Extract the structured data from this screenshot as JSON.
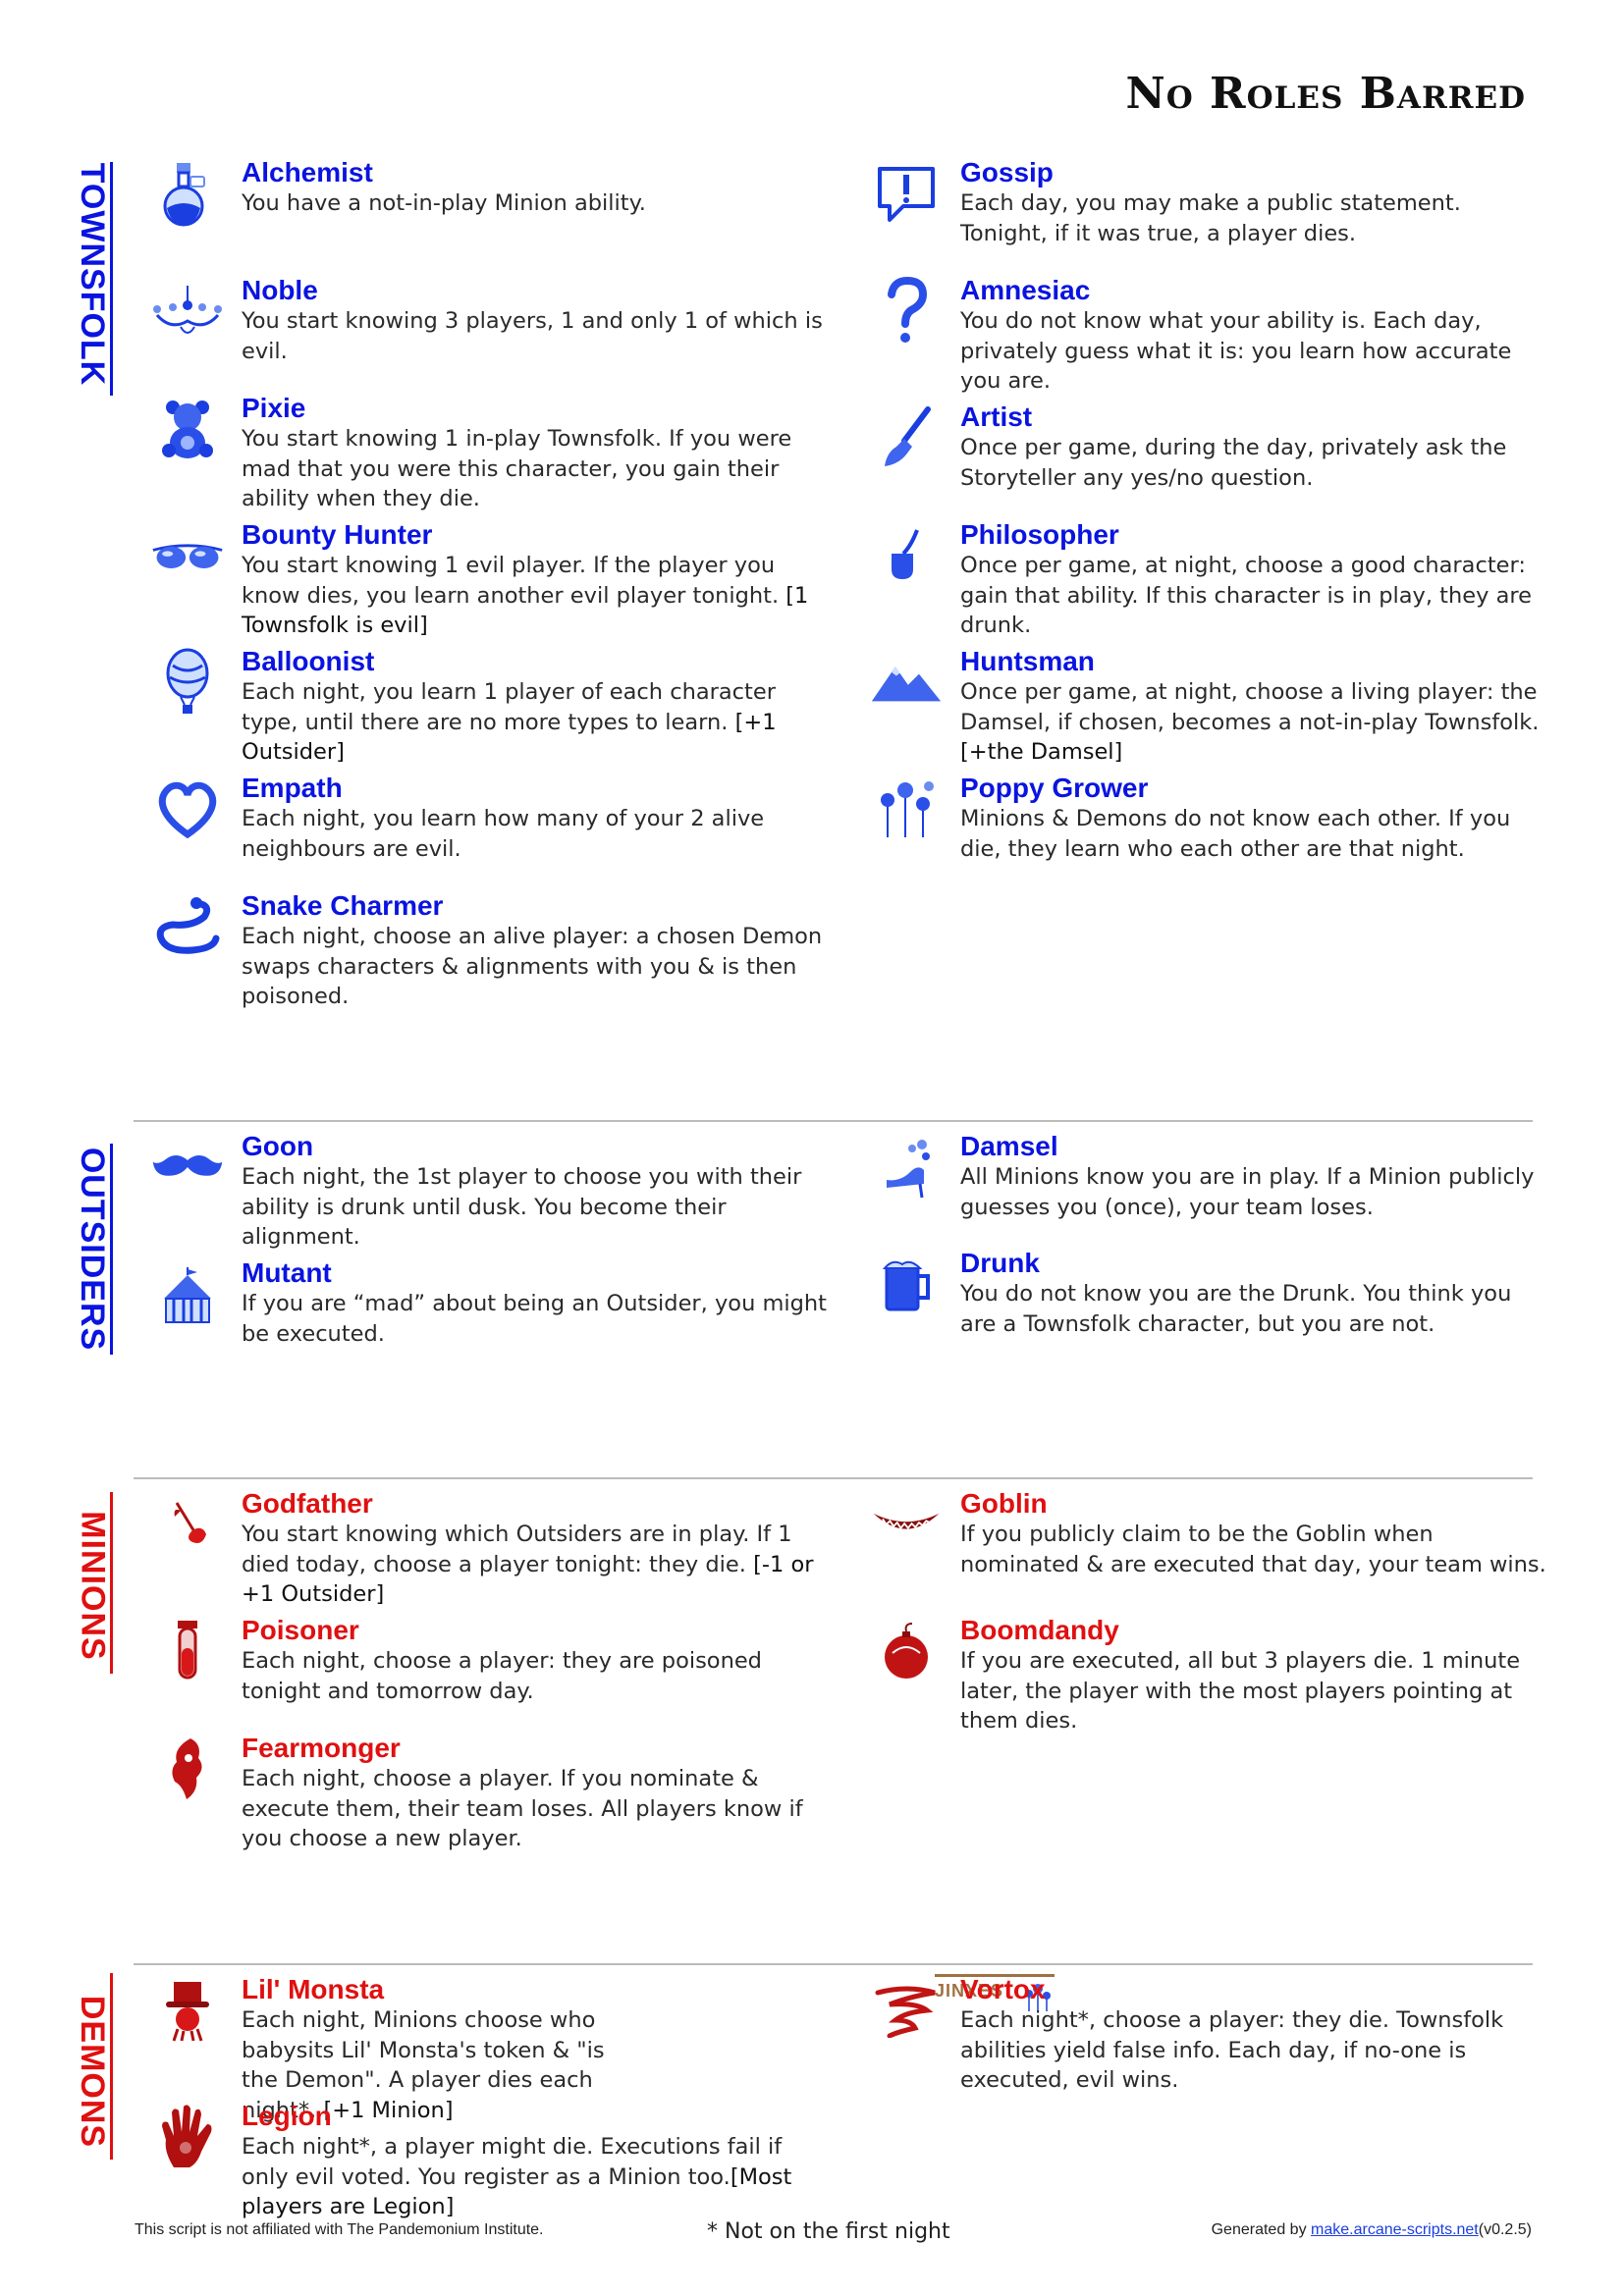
{
  "title": "No Roles Barred",
  "sections": {
    "townsfolk": {
      "label": "TOWNSFOLK",
      "left": [
        {
          "name": "Alchemist",
          "ability": "You have a not-in-play Minion ability.",
          "setup": "",
          "icon": "potion-icon"
        },
        {
          "name": "Noble",
          "ability": "You start knowing 3 players, 1 and only 1 of which is evil.",
          "setup": "",
          "icon": "chandelier-icon"
        },
        {
          "name": "Pixie",
          "ability": "You start knowing 1 in-play Townsfolk. If you were mad that you were this character, you gain their ability when they die.",
          "setup": "",
          "icon": "teddy-bear-icon"
        },
        {
          "name": "Bounty Hunter",
          "ability": "You start knowing 1 evil player. If the player you know dies, you learn another evil player tonight.",
          "setup": "[1 Townsfolk is evil]",
          "icon": "sunglasses-icon"
        },
        {
          "name": "Balloonist",
          "ability": "Each night, you learn 1 player of each character type, until there are no more types to learn.",
          "setup": "[+1 Outsider]",
          "icon": "balloon-icon"
        },
        {
          "name": "Empath",
          "ability": "Each night, you learn how many of your 2 alive neighbours are evil.",
          "setup": "",
          "icon": "heart-icon"
        },
        {
          "name": "Snake Charmer",
          "ability": "Each night, choose an alive player: a chosen Demon swaps characters & alignments with you & is then poisoned.",
          "setup": "",
          "icon": "snake-icon"
        }
      ],
      "right": [
        {
          "name": "Gossip",
          "ability": "Each day, you may make a public statement. Tonight, if it was true, a player dies.",
          "setup": "",
          "icon": "speech-bubble-icon"
        },
        {
          "name": "Amnesiac",
          "ability": "You do not know what your ability is. Each day, privately guess what it is: you learn how accurate you are.",
          "setup": "",
          "icon": "question-mark-icon"
        },
        {
          "name": "Artist",
          "ability": "Once per game, during the day, privately ask the Storyteller any yes/no question.",
          "setup": "",
          "icon": "paintbrush-icon"
        },
        {
          "name": "Philosopher",
          "ability": "Once per game, at night, choose a good character: gain that ability. If this character is in play, they are drunk.",
          "setup": "",
          "icon": "pipe-icon"
        },
        {
          "name": "Huntsman",
          "ability": "Once per game, at night, choose a living player: the Damsel, if chosen, becomes a not-in-play Townsfolk.",
          "setup": "[+the Damsel]",
          "icon": "mountains-icon"
        },
        {
          "name": "Poppy Grower",
          "ability": "Minions & Demons do not know each other. If you die, they learn who each other are that night.",
          "setup": "",
          "icon": "poppies-icon"
        }
      ]
    },
    "outsiders": {
      "label": "OUTSIDERS",
      "left": [
        {
          "name": "Goon",
          "ability": "Each night, the 1st player to choose you with their ability is drunk until dusk. You become their alignment.",
          "setup": "",
          "icon": "moustache-icon"
        },
        {
          "name": "Mutant",
          "ability": "If you are “mad” about being an Outsider, you might be executed.",
          "setup": "",
          "icon": "circus-tent-icon"
        }
      ],
      "right": [
        {
          "name": "Damsel",
          "ability": "All Minions know you are in play. If a Minion publicly guesses you (once), your team loses.",
          "setup": "",
          "icon": "high-heel-icon"
        },
        {
          "name": "Drunk",
          "ability": "You do not know you are the Drunk. You think you are a Townsfolk character, but you are not.",
          "setup": "",
          "icon": "beer-mug-icon"
        }
      ]
    },
    "minions": {
      "label": "MINIONS",
      "left": [
        {
          "name": "Godfather",
          "ability": "You start knowing which Outsiders are in play. If 1 died today, choose a player tonight: they die.",
          "setup": "[-1 or +1 Outsider]",
          "icon": "rose-icon"
        },
        {
          "name": "Poisoner",
          "ability": "Each night, choose a player: they are poisoned tonight and tomorrow day.",
          "setup": "",
          "icon": "vial-icon"
        },
        {
          "name": "Fearmonger",
          "ability": "Each night, choose a player. If you nominate & execute them, their team loses. All players know if you choose a new player.",
          "setup": "",
          "icon": "fearmonger-icon"
        }
      ],
      "right": [
        {
          "name": "Goblin",
          "ability": "If you publicly claim to be the Goblin when nominated & are executed that day, your team wins.",
          "setup": "",
          "icon": "grin-icon"
        },
        {
          "name": "Boomdandy",
          "ability": "If you are executed, all but 3 players die. 1 minute later, the player with the most players pointing at them dies.",
          "setup": "",
          "icon": "bomb-icon"
        }
      ]
    },
    "demons": {
      "label": "DEMONS",
      "left": [
        {
          "name": "Lil' Monsta",
          "ability": "Each night, Minions choose who babysits Lil' Monsta's token & \"is the Demon\". A player dies each night*.",
          "setup": "[+1 Minion]",
          "icon": "top-hat-icon"
        },
        {
          "name": "Legion",
          "ability": "Each night*, a player might die. Executions fail if only evil voted. You register as a Minion too.",
          "setup": "[Most players are Legion]",
          "icon": "handprint-icon"
        }
      ],
      "right": [
        {
          "name": "Vortox",
          "ability": "Each night*, choose a player: they die. Townsfolk abilities yield false info. Each day, if no-one is executed, evil wins.",
          "setup": "",
          "icon": "vortex-icon"
        }
      ],
      "jinx_label": "JINXES"
    }
  },
  "footer": {
    "disclaimer": "This script is not affiliated with The Pandemonium Institute.",
    "note": "* Not on the first night",
    "generated_prefix": "Generated by ",
    "generated_link": "make.arcane-scripts.net",
    "version": "(v0.2.5)"
  },
  "colors": {
    "good": "#0a14e0",
    "evil": "#e01010",
    "jinx": "#a07040"
  }
}
